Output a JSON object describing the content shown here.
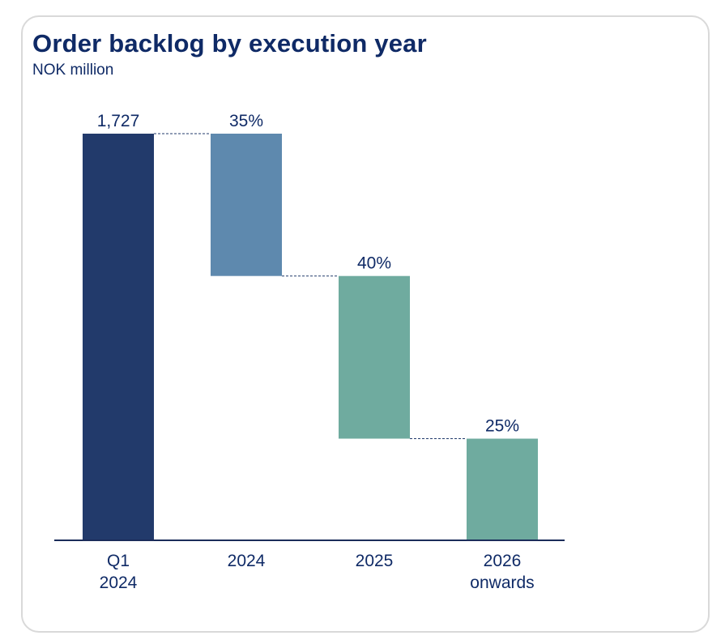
{
  "title": "Order backlog by execution year",
  "subtitle": "NOK million",
  "colors": {
    "title": "#0f2a66",
    "total_bar": "#223a6b",
    "bar_2024": "#5e89ae",
    "bar_2025": "#6fab9f",
    "bar_2026": "#6fab9f",
    "axis": "#1b2c5a",
    "connector": "#223a6b"
  },
  "chart_data": {
    "type": "bar",
    "subtype": "waterfall",
    "title": "Order backlog by execution year",
    "ylabel": "NOK million",
    "ylim": [
      0,
      1727
    ],
    "grid": false,
    "categories": [
      [
        "Q1",
        "2024"
      ],
      [
        "2024"
      ],
      [
        "2025"
      ],
      [
        "2026",
        "onwards"
      ]
    ],
    "total": 1727,
    "total_label": "1,727",
    "shares_percent": [
      35,
      40,
      25
    ],
    "data_labels": [
      "1,727",
      "35%",
      "40%",
      "25%"
    ]
  }
}
